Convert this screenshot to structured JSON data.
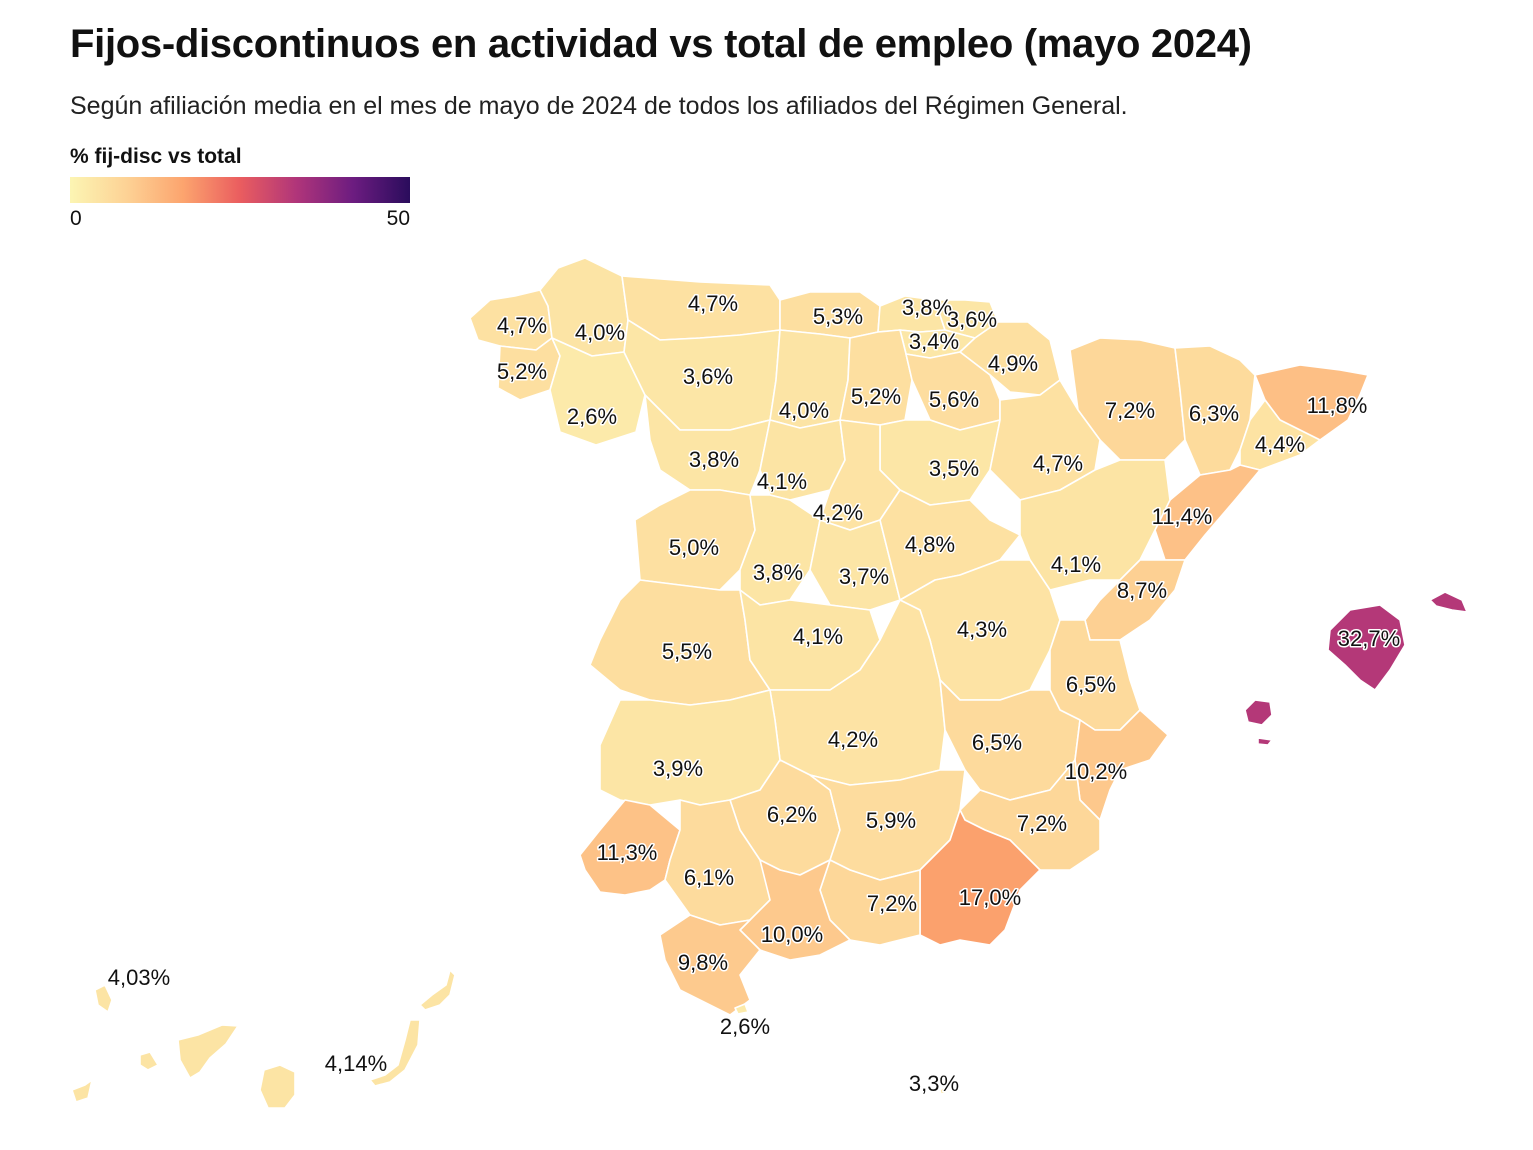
{
  "header": {
    "title": "Fijos-discontinuos en actividad vs total de empleo (mayo 2024)",
    "subtitle": "Según afiliación media en el mes de mayo de 2024 de todos los afiliados del Régimen General."
  },
  "legend": {
    "title": "% fij-disc vs total",
    "min_label": "0",
    "max_label": "50",
    "min": 0,
    "max": 50,
    "palette": [
      "#fcf5b3",
      "#fdd295",
      "#fca46e",
      "#ea5d5f",
      "#b0357a",
      "#6c1c80",
      "#2a0c5c"
    ]
  },
  "chart_data": {
    "type": "choropleth",
    "value_unit": "%",
    "colorscale": {
      "min": 0,
      "max": 50
    },
    "regions": [
      {
        "label": "4,7%",
        "value": 4.7
      },
      {
        "label": "4,0%",
        "value": 4.0
      },
      {
        "label": "5,2%",
        "value": 5.2
      },
      {
        "label": "2,6%",
        "value": 2.6
      },
      {
        "label": "4,7%",
        "value": 4.7
      },
      {
        "label": "3,6%",
        "value": 3.6
      },
      {
        "label": "5,3%",
        "value": 5.3
      },
      {
        "label": "3,8%",
        "value": 3.8
      },
      {
        "label": "3,6%",
        "value": 3.6
      },
      {
        "label": "3,4%",
        "value": 3.4
      },
      {
        "label": "4,9%",
        "value": 4.9
      },
      {
        "label": "4,0%",
        "value": 4.0
      },
      {
        "label": "5,2%",
        "value": 5.2
      },
      {
        "label": "5,6%",
        "value": 5.6
      },
      {
        "label": "7,2%",
        "value": 7.2
      },
      {
        "label": "6,3%",
        "value": 6.3
      },
      {
        "label": "11,8%",
        "value": 11.8
      },
      {
        "label": "4,4%",
        "value": 4.4
      },
      {
        "label": "3,8%",
        "value": 3.8
      },
      {
        "label": "4,1%",
        "value": 4.1
      },
      {
        "label": "3,5%",
        "value": 3.5
      },
      {
        "label": "4,7%",
        "value": 4.7
      },
      {
        "label": "4,2%",
        "value": 4.2
      },
      {
        "label": "11,4%",
        "value": 11.4
      },
      {
        "label": "5,0%",
        "value": 5.0
      },
      {
        "label": "3,8%",
        "value": 3.8
      },
      {
        "label": "3,7%",
        "value": 3.7
      },
      {
        "label": "4,8%",
        "value": 4.8
      },
      {
        "label": "4,1%",
        "value": 4.1
      },
      {
        "label": "8,7%",
        "value": 8.7
      },
      {
        "label": "5,5%",
        "value": 5.5
      },
      {
        "label": "4,1%",
        "value": 4.1
      },
      {
        "label": "4,3%",
        "value": 4.3
      },
      {
        "label": "32,7%",
        "value": 32.7
      },
      {
        "label": "6,5%",
        "value": 6.5
      },
      {
        "label": "4,2%",
        "value": 4.2
      },
      {
        "label": "6,5%",
        "value": 6.5
      },
      {
        "label": "3,9%",
        "value": 3.9
      },
      {
        "label": "10,2%",
        "value": 10.2
      },
      {
        "label": "6,2%",
        "value": 6.2
      },
      {
        "label": "5,9%",
        "value": 5.9
      },
      {
        "label": "7,2%",
        "value": 7.2
      },
      {
        "label": "11,3%",
        "value": 11.3
      },
      {
        "label": "6,1%",
        "value": 6.1
      },
      {
        "label": "17,0%",
        "value": 17.0
      },
      {
        "label": "7,2%",
        "value": 7.2
      },
      {
        "label": "10,0%",
        "value": 10.0
      },
      {
        "label": "9,8%",
        "value": 9.8
      },
      {
        "label": "2,6%",
        "value": 2.6
      },
      {
        "label": "3,3%",
        "value": 3.3
      },
      {
        "label": "4,03%",
        "value": 4.03
      },
      {
        "label": "4,14%",
        "value": 4.14
      }
    ]
  }
}
